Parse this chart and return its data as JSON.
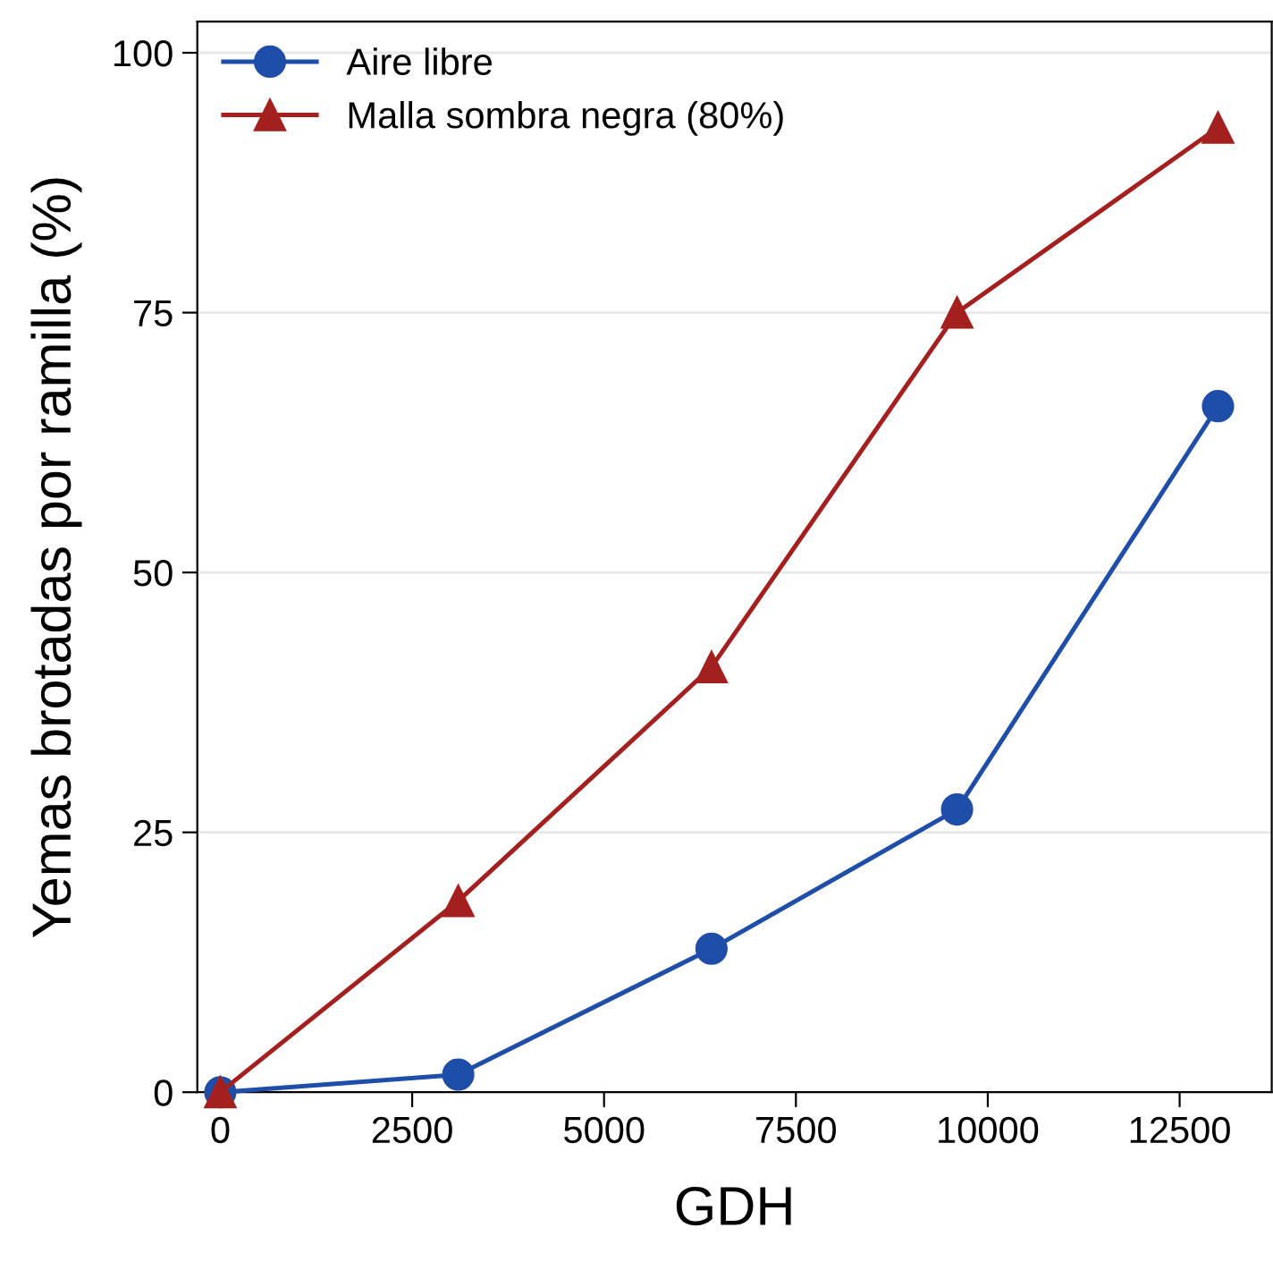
{
  "chart_data": {
    "type": "line",
    "xlabel": "GDH",
    "ylabel": "Yemas brotadas por ramilla (%)",
    "x": [
      0,
      3100,
      6400,
      9600,
      13000
    ],
    "series": [
      {
        "name": "Aire libre",
        "color": "#1f4ea8",
        "marker": "circle",
        "values": [
          0,
          1.7,
          13.8,
          27.2,
          66
        ]
      },
      {
        "name": "Malla sombra negra (80%)",
        "color": "#a3201f",
        "marker": "triangle",
        "values": [
          0,
          18.4,
          40.9,
          75,
          92.8
        ]
      }
    ],
    "xlim": [
      -300,
      13700
    ],
    "xticks": [
      0,
      2500,
      5000,
      7500,
      10000,
      12500
    ],
    "ylim": [
      0,
      103
    ],
    "yticks": [
      0,
      25,
      50,
      75,
      100
    ],
    "grid": "y",
    "legend": "top left",
    "line_style": "solid"
  }
}
